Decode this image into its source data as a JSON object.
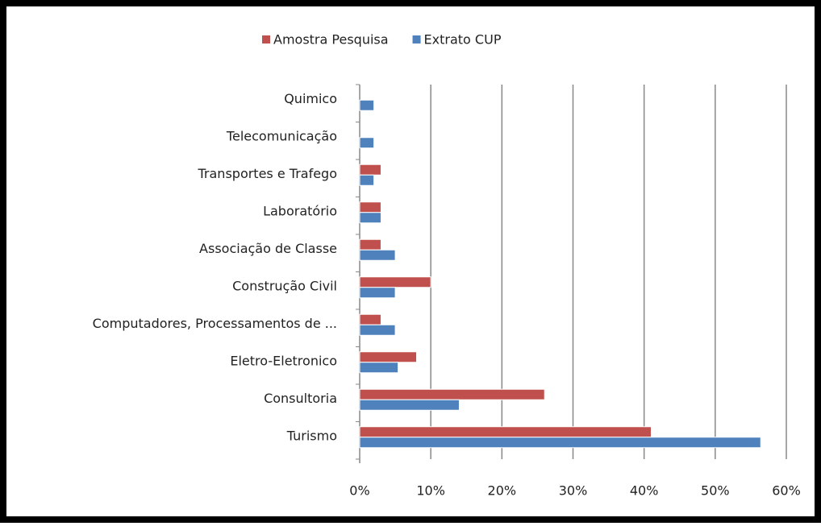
{
  "chart_data": {
    "type": "hbar",
    "categories": [
      "Quimico",
      "Telecomunicação",
      "Transportes e Trafego",
      "Laboratório",
      "Associação de Classe",
      "Construção Civil",
      "Computadores, Processamentos de ...",
      "Eletro-Eletronico",
      "Consultoria",
      "Turismo"
    ],
    "series": [
      {
        "name": "Amostra Pesquisa",
        "color": "#c0504d",
        "values": [
          0,
          0,
          3,
          3,
          3,
          10,
          3,
          8,
          26,
          41
        ]
      },
      {
        "name": "Extrato CUP",
        "color": "#4f81bd",
        "values": [
          2,
          2,
          2,
          3,
          5,
          5,
          5,
          5.4,
          14,
          56.4
        ]
      }
    ],
    "xlim": [
      0,
      60
    ],
    "xticks": [
      {
        "value": 0,
        "label": "0%"
      },
      {
        "value": 10,
        "label": "10%"
      },
      {
        "value": 20,
        "label": "20%"
      },
      {
        "value": 30,
        "label": "30%"
      },
      {
        "value": 40,
        "label": "40%"
      },
      {
        "value": 50,
        "label": "50%"
      },
      {
        "value": 60,
        "label": "60%"
      }
    ],
    "grid": true,
    "legend": "top"
  }
}
